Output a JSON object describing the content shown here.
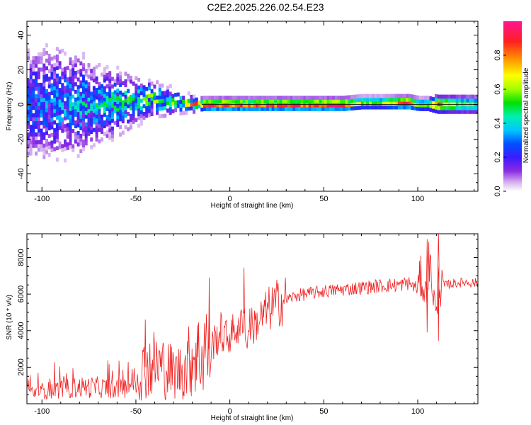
{
  "title": "C2E2.2025.226.02.54.E23",
  "chart_data": [
    {
      "type": "heatmap",
      "title": "C2E2.2025.226.02.54.E23",
      "xlabel": "Height of straight line (km)",
      "ylabel": "Frequency (Hz)",
      "xlim": [
        -108,
        132
      ],
      "ylim": [
        -50,
        48
      ],
      "xticks": [
        -100,
        -50,
        0,
        50,
        100
      ],
      "yticks": [
        -40,
        -20,
        0,
        20,
        40
      ],
      "grid": false,
      "colorbar": {
        "label": "Normalized spectral amplitude",
        "range": [
          0,
          1
        ],
        "ticks": [
          0.0,
          0.2,
          0.4,
          0.6,
          0.8
        ],
        "colors": [
          "#ffffff",
          "#d8b4f0",
          "#8a2be2",
          "#3a1cff",
          "#0050ff",
          "#00c8ff",
          "#00f0b0",
          "#00e000",
          "#a0ff00",
          "#ffff00",
          "#ff9000",
          "#ff2020",
          "#ff1493"
        ]
      },
      "series": [
        {
          "x": [
            -100,
            -90,
            -80,
            -70,
            -60,
            -50,
            -45,
            -40,
            -35,
            -30,
            -25,
            -20,
            -15,
            -10,
            -5,
            0,
            8,
            20,
            40,
            60,
            70,
            80,
            90,
            95,
            100,
            105,
            110,
            120,
            130
          ],
          "center_hz": [
            0,
            1,
            0,
            0,
            1,
            2,
            3,
            3,
            2,
            2,
            1,
            0,
            0,
            0,
            0,
            0,
            0,
            0,
            0,
            0,
            1,
            1,
            1,
            1,
            0,
            0,
            0,
            0,
            0
          ],
          "spread_hz": [
            30,
            28,
            25,
            20,
            16,
            12,
            10,
            9,
            8,
            6,
            5,
            4,
            3,
            3,
            3,
            3,
            3,
            3,
            3,
            3,
            3,
            3,
            3,
            3,
            3,
            3,
            4,
            4,
            4
          ],
          "peak_amplitude": [
            0.3,
            0.35,
            0.4,
            0.4,
            0.45,
            0.5,
            0.55,
            0.6,
            0.55,
            0.55,
            0.6,
            0.75,
            0.85,
            0.9,
            0.9,
            0.9,
            0.85,
            0.9,
            0.9,
            0.95,
            0.6,
            0.6,
            0.85,
            0.95,
            0.6,
            0.6,
            0.9,
            0.6,
            0.55
          ]
        }
      ]
    },
    {
      "type": "line",
      "xlabel": "Height of straight line (km)",
      "ylabel": "SNR (10 * v/v)",
      "xlim": [
        -108,
        132
      ],
      "ylim": [
        0,
        9300
      ],
      "xticks": [
        -100,
        -50,
        0,
        50,
        100
      ],
      "yticks": [
        2000,
        4000,
        6000,
        8000
      ],
      "grid": false,
      "color": "#ee2222",
      "series": [
        {
          "x": [
            -108,
            -100,
            -90,
            -80,
            -70,
            -60,
            -55,
            -50,
            -45,
            -40,
            -35,
            -30,
            -25,
            -20,
            -18,
            -15,
            -13,
            -12,
            -10,
            -5,
            -2,
            0,
            3,
            5,
            7,
            8,
            9,
            10,
            12,
            15,
            20,
            25,
            30,
            35,
            40,
            50,
            60,
            70,
            80,
            90,
            95,
            100,
            102,
            104,
            106,
            108,
            110,
            111,
            112,
            115,
            120,
            125,
            132
          ],
          "y": [
            600,
            700,
            800,
            900,
            900,
            800,
            900,
            1400,
            2000,
            2200,
            2000,
            1700,
            1800,
            2600,
            2800,
            2500,
            3500,
            2800,
            3200,
            3900,
            3600,
            3700,
            4200,
            3800,
            5000,
            4900,
            2600,
            4600,
            4200,
            4500,
            5100,
            5500,
            5700,
            5900,
            6000,
            6150,
            6250,
            6350,
            6450,
            6500,
            6600,
            6300,
            7000,
            5800,
            7800,
            6400,
            4500,
            7600,
            6200,
            6500,
            6600,
            6650,
            6600
          ],
          "spikes": [
            {
              "x": -45,
              "y": 4600
            },
            {
              "x": -11,
              "y": 6900
            },
            {
              "x": 7.5,
              "y": 7450
            },
            {
              "x": 105,
              "y": 9000
            },
            {
              "x": 111,
              "y": 9300
            },
            {
              "x": 105,
              "y": 3900
            },
            {
              "x": 111,
              "y": 3450
            }
          ]
        }
      ]
    }
  ]
}
